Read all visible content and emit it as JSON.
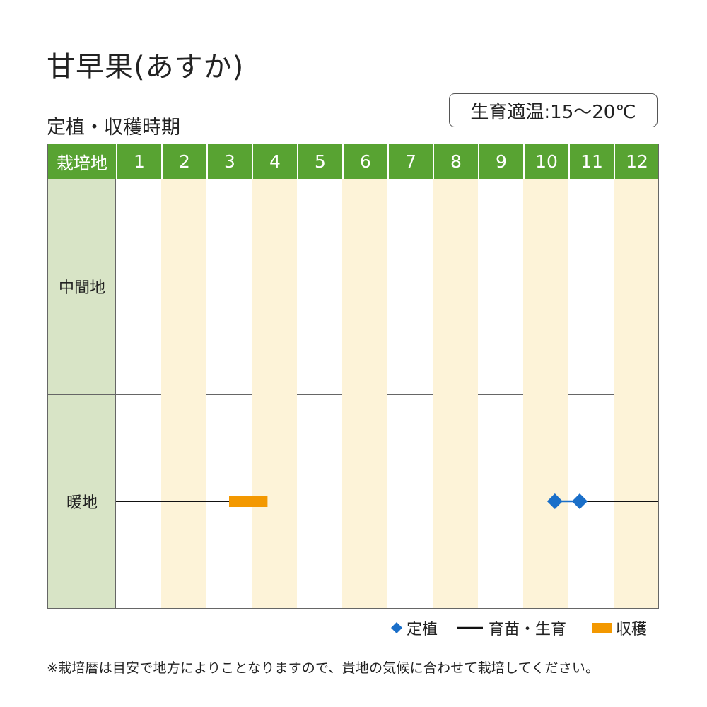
{
  "title": "甘早果(あすか)",
  "subtitle": "定植・収穫時期",
  "temperature_badge": "生育適温:15〜20℃",
  "table": {
    "corner_label": "栽培地",
    "months": [
      "1",
      "2",
      "3",
      "4",
      "5",
      "6",
      "7",
      "8",
      "9",
      "10",
      "11",
      "12"
    ],
    "regions": [
      {
        "label": "中間地",
        "events": []
      },
      {
        "label": "暖地",
        "events": [
          {
            "type": "growth",
            "from_month": 1.0,
            "to_month": 3.5
          },
          {
            "type": "harvest",
            "from_month": 3.5,
            "to_month": 4.35
          },
          {
            "type": "planting",
            "month": 10.7
          },
          {
            "type": "planting",
            "month": 11.25
          },
          {
            "type": "growth",
            "from_month": 11.25,
            "to_month": 13.0
          }
        ]
      }
    ]
  },
  "legend": {
    "planting": "定植",
    "growth": "育苗・生育",
    "harvest": "収穫"
  },
  "note": "※栽培暦は目安で地方によりことなりますので、貴地の気候に合わせて栽培してください。",
  "colors": {
    "header": "#58a332",
    "label_column": "#d8e4c6",
    "stripe": "#fdf3d8",
    "planting": "#1a6fc9",
    "growth": "#111111",
    "harvest": "#f39800"
  }
}
